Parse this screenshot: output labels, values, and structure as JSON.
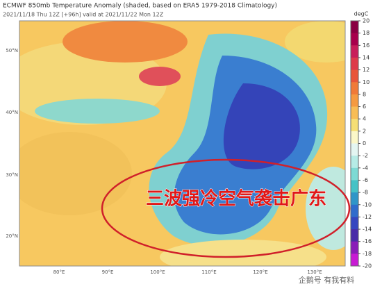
{
  "header": {
    "title": "ECMWF 850mb Temperature Anomaly (shaded, based on ERA5 1979-2018 Climatology)",
    "subtitle": "2021/11/18 Thu 12Z [+96h] valid at 2021/11/22 Mon 12Z"
  },
  "colorbar": {
    "unit": "degC",
    "ticks": [
      20,
      18,
      16,
      14,
      12,
      10,
      8,
      6,
      4,
      2,
      0,
      -2,
      -4,
      -6,
      -8,
      -10,
      -12,
      -14,
      -16,
      -18,
      -20
    ],
    "colors": [
      "#8a0042",
      "#a8004c",
      "#c81e5a",
      "#de3a4a",
      "#e8553a",
      "#f07a38",
      "#f59a40",
      "#f8bd55",
      "#f6df75",
      "#fbf7c8",
      "#e4f6f2",
      "#b6ece6",
      "#7ddad4",
      "#45c2c6",
      "#2f96c8",
      "#2f6ccc",
      "#3446c0",
      "#4a2ca8",
      "#8a1cb8",
      "#c81ad4"
    ]
  },
  "map": {
    "lat_labels": [
      "50°N",
      "40°N",
      "30°N",
      "20°N"
    ],
    "lon_labels": [
      "80°E",
      "90°E",
      "100°E",
      "110°E",
      "120°E",
      "130°E"
    ]
  },
  "overlay": {
    "headline": "三波强冷空气袭击广东",
    "watermark": "企鹅号 有我有料"
  }
}
